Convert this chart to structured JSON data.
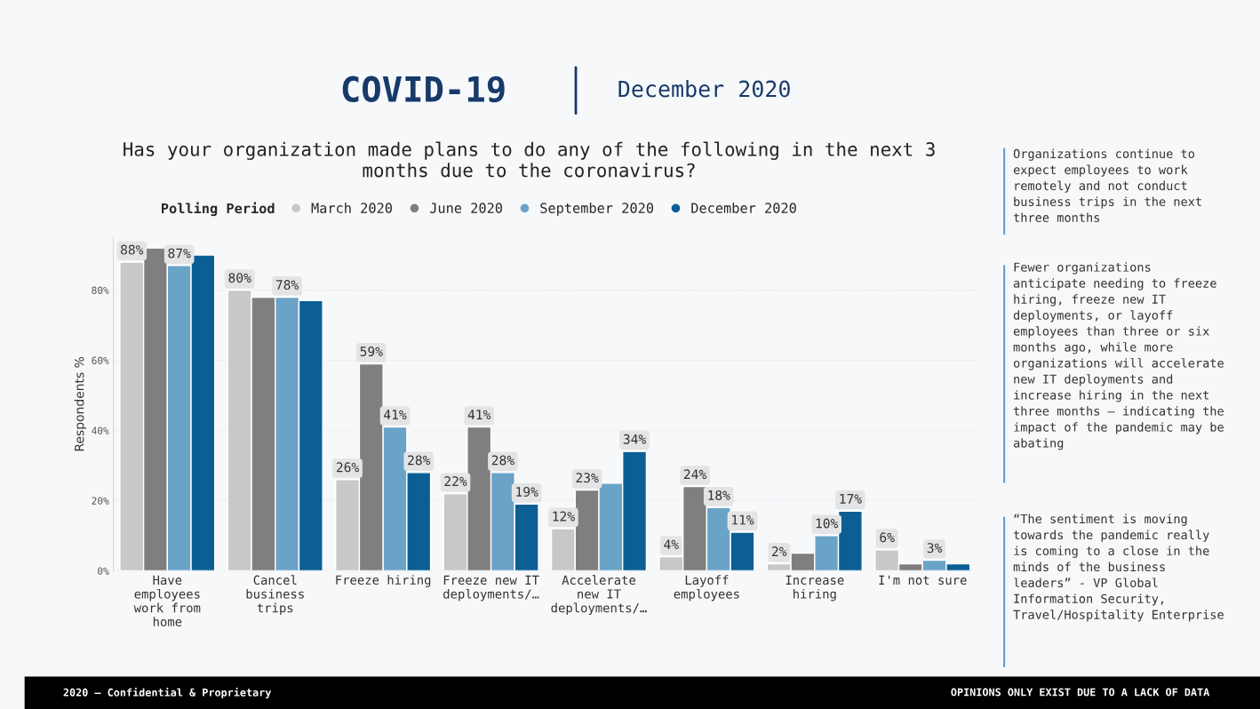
{
  "chart_data": {
    "type": "bar",
    "title": "COVID-19",
    "subtitle": "December 2020",
    "ylabel": "Respondents %",
    "legend_title": "Polling Period",
    "categories": [
      "Have\nemployees\nwork from\nhome",
      "Cancel\nbusiness\ntrips",
      "Freeze hiring",
      "Freeze new IT\ndeployments/…",
      "Accelerate\nnew IT\ndeployments/…",
      "Layoff\nemployees",
      "Increase\nhiring",
      "I'm not sure"
    ],
    "series": [
      {
        "name": "March 2020",
        "color": "#c8c8c8",
        "values": [
          88,
          80,
          26,
          22,
          12,
          4,
          2,
          6
        ],
        "value_labels": [
          "88%",
          "80%",
          "26%",
          "22%",
          "12%",
          "4%",
          "2%",
          "6%"
        ]
      },
      {
        "name": "June 2020",
        "color": "#7f7f7f",
        "values": [
          92,
          78,
          59,
          41,
          23,
          24,
          5,
          2
        ],
        "value_labels": [
          null,
          null,
          "59%",
          "41%",
          "23%",
          "24%",
          null,
          null
        ]
      },
      {
        "name": "September 2020",
        "color": "#6aa3c8",
        "values": [
          87,
          78,
          41,
          28,
          25,
          18,
          10,
          3
        ],
        "value_labels": [
          "87%",
          "78%",
          "41%",
          "28%",
          null,
          "18%",
          "10%",
          "3%"
        ]
      },
      {
        "name": "December 2020",
        "color": "#0b5f94",
        "values": [
          90,
          77,
          28,
          19,
          34,
          11,
          17,
          2
        ],
        "value_labels": [
          null,
          null,
          "28%",
          "19%",
          "34%",
          "11%",
          "17%",
          null
        ]
      }
    ],
    "ylim": [
      0,
      95
    ],
    "yticks": [
      {
        "value": 0,
        "label": "0%"
      },
      {
        "value": 20,
        "label": "20%"
      },
      {
        "value": 40,
        "label": "40%"
      },
      {
        "value": 60,
        "label": "60%"
      },
      {
        "value": 80,
        "label": "80%"
      }
    ],
    "grid": "y",
    "legend": "top",
    "annotations": [
      "Has your organization made plans to do any of the following in the next 3 months due to the coronavirus?",
      "Organizations continue to expect employees to work remotely and not conduct business trips in the next three months",
      "Fewer organizations anticipate needing to freeze hiring, freeze new IT deployments, or layoff employees than three or six months ago, while more organizations will accelerate new IT deployments and increase hiring in the next three months – indicating the impact of the pandemic may be abating",
      "“The sentiment is moving towards the pandemic really is coming to a close in the minds of the business leaders” - VP Global Information Security, Travel/Hospitality Enterprise",
      "2020 – Confidential & Proprietary",
      "OPINIONS ONLY EXIST DUE TO A LACK OF DATA"
    ]
  }
}
